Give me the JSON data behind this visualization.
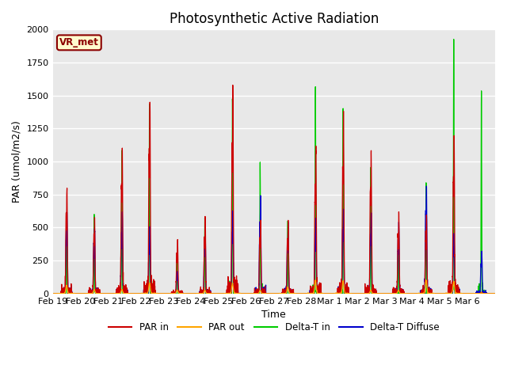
{
  "title": "Photosynthetic Active Radiation",
  "ylabel": "PAR (umol/m2/s)",
  "xlabel": "Time",
  "ylim": [
    0,
    2000
  ],
  "background_color": "#e8e8e8",
  "xtick_labels": [
    "Feb 19",
    "Feb 20",
    "Feb 21",
    "Feb 22",
    "Feb 23",
    "Feb 24",
    "Feb 25",
    "Feb 26",
    "Feb 27",
    "Feb 28",
    "Mar 1",
    "Mar 2",
    "Mar 3",
    "Mar 4",
    "Mar 5",
    "Mar 6"
  ],
  "legend_labels": [
    "PAR in",
    "PAR out",
    "Delta-T in",
    "Delta-T Diffuse"
  ],
  "legend_colors": [
    "#cc0000",
    "#ffa500",
    "#00cc00",
    "#0000cc"
  ],
  "vr_met_label": "VR_met",
  "n_points_per_day": 288,
  "n_days": 16,
  "daily_peaks_par_in": [
    810,
    580,
    1100,
    1460,
    400,
    570,
    1540,
    560,
    550,
    1110,
    1330,
    1100,
    600,
    590,
    1190,
    10
  ],
  "daily_peaks_par_out": [
    60,
    30,
    30,
    80,
    25,
    25,
    80,
    25,
    50,
    100,
    95,
    25,
    25,
    100,
    90,
    5
  ],
  "daily_peaks_green": [
    600,
    590,
    1080,
    1460,
    250,
    570,
    1520,
    990,
    560,
    1530,
    1420,
    980,
    410,
    810,
    1940,
    1560
  ],
  "daily_peaks_blue": [
    620,
    500,
    610,
    490,
    170,
    460,
    630,
    720,
    540,
    580,
    640,
    600,
    530,
    820,
    440,
    310
  ],
  "title_fontsize": 12,
  "axis_label_fontsize": 9,
  "tick_fontsize": 8
}
